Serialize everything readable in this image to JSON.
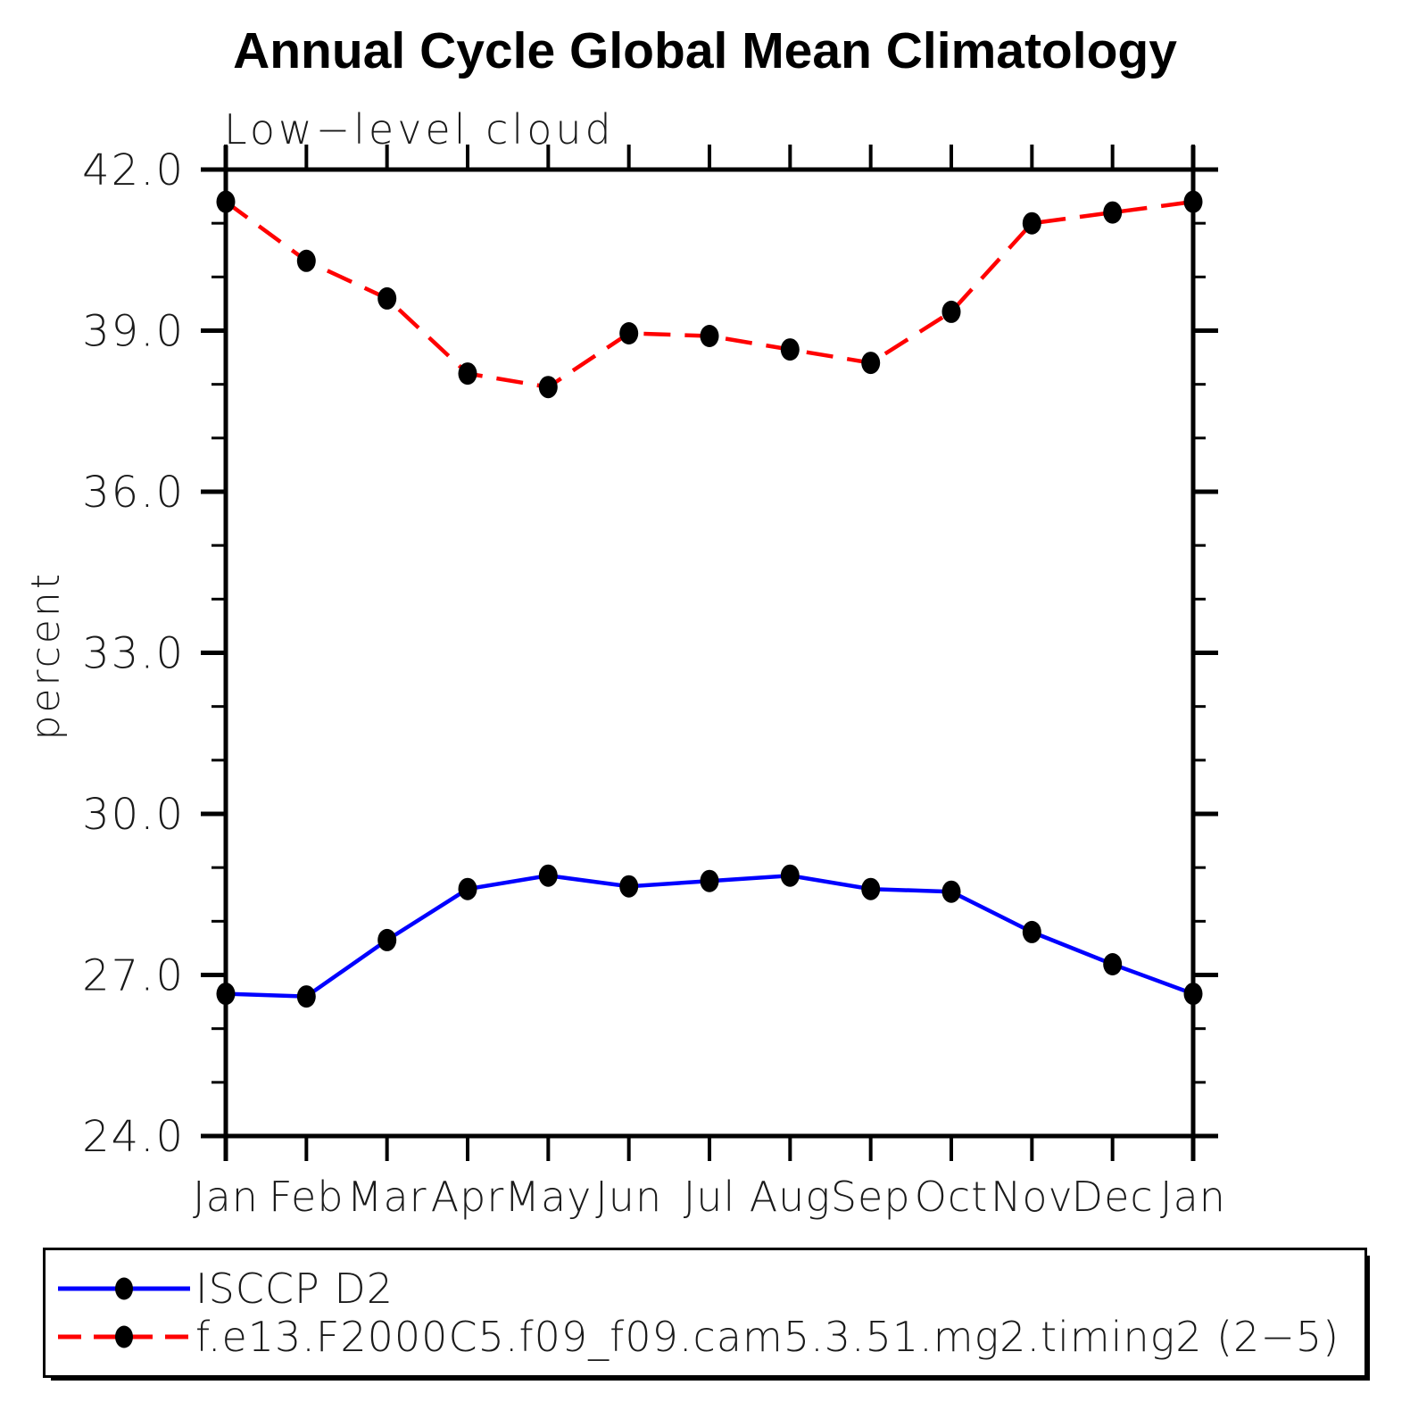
{
  "chart_data": {
    "type": "line",
    "title": "Annual Cycle Global Mean Climatology",
    "subtitle": "Low−level cloud",
    "ylabel": "percent",
    "ylim": [
      24.0,
      42.0
    ],
    "ytick_major": [
      24.0,
      27.0,
      30.0,
      33.0,
      36.0,
      39.0,
      42.0
    ],
    "ytick_major_labels": [
      "24.0",
      "27.0",
      "30.0",
      "33.0",
      "36.0",
      "39.0",
      "42.0"
    ],
    "ytick_minor_interval": 1.0,
    "grid": false,
    "legend_position": "bottom-left-box",
    "categories": [
      "Jan",
      "Feb",
      "Mar",
      "Apr",
      "May",
      "Jun",
      "Jul",
      "Aug",
      "Sep",
      "Oct",
      "Nov",
      "Dec",
      "Jan"
    ],
    "series": [
      {
        "name": "ISCCP D2",
        "color": "#0000ff",
        "line_style": "solid",
        "marker": "filled-circle",
        "marker_color": "#000000",
        "values": [
          26.65,
          26.6,
          27.65,
          28.6,
          28.85,
          28.65,
          28.75,
          28.85,
          28.6,
          28.55,
          27.8,
          27.2,
          26.65
        ]
      },
      {
        "name": "f.e13.F2000C5.f09_f09.cam5.3.51.mg2.timing2 (2−5)",
        "color": "#ff0000",
        "line_style": "dashed",
        "marker": "filled-circle",
        "marker_color": "#000000",
        "values": [
          41.4,
          40.3,
          39.6,
          38.2,
          37.95,
          38.95,
          38.9,
          38.65,
          38.4,
          39.35,
          41.0,
          41.2,
          41.4
        ]
      }
    ],
    "axis_color": "#000000"
  }
}
